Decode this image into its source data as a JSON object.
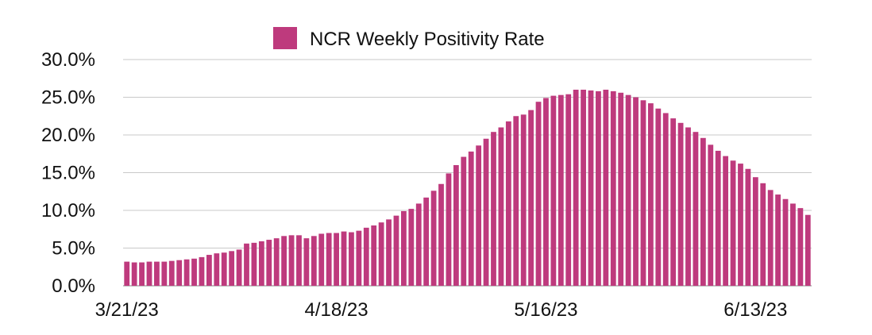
{
  "chart_data": {
    "type": "bar",
    "legend": {
      "label": "NCR Weekly Positivity Rate",
      "placement": "top-center"
    },
    "series": [
      {
        "name": "NCR Weekly Positivity Rate",
        "color": "#be3a7d",
        "values": [
          3.2,
          3.1,
          3.1,
          3.2,
          3.2,
          3.2,
          3.3,
          3.4,
          3.5,
          3.6,
          3.8,
          4.1,
          4.3,
          4.4,
          4.6,
          4.8,
          5.6,
          5.7,
          5.9,
          6.1,
          6.3,
          6.6,
          6.7,
          6.7,
          6.3,
          6.6,
          6.9,
          7.0,
          7.0,
          7.2,
          7.1,
          7.3,
          7.7,
          8.0,
          8.4,
          8.8,
          9.3,
          9.9,
          10.2,
          10.9,
          11.7,
          12.6,
          13.5,
          14.9,
          16.0,
          17.1,
          17.8,
          18.6,
          19.5,
          20.4,
          21.0,
          21.8,
          22.5,
          22.7,
          23.3,
          24.4,
          24.9,
          25.2,
          25.3,
          25.4,
          26.0,
          26.0,
          25.9,
          25.8,
          26.0,
          25.8,
          25.6,
          25.3,
          25.0,
          24.6,
          24.2,
          23.5,
          22.9,
          22.2,
          21.6,
          21.0,
          20.4,
          19.6,
          18.7,
          17.9,
          17.2,
          16.6,
          16.2,
          15.5,
          14.4,
          13.6,
          12.7,
          12.1,
          11.5,
          10.9,
          10.3,
          9.4
        ]
      }
    ],
    "x_tick_labels": [
      "3/21/23",
      "4/18/23",
      "5/16/23",
      "6/13/23"
    ],
    "x_tick_indices": [
      0,
      28,
      56,
      84
    ],
    "y_tick_labels": [
      "0.0%",
      "5.0%",
      "10.0%",
      "15.0%",
      "20.0%",
      "25.0%",
      "30.0%"
    ],
    "y_tick_values": [
      0,
      5,
      10,
      15,
      20,
      25,
      30
    ],
    "ylim": [
      0,
      30
    ],
    "y_unit": "%",
    "grid": "horizontal"
  }
}
